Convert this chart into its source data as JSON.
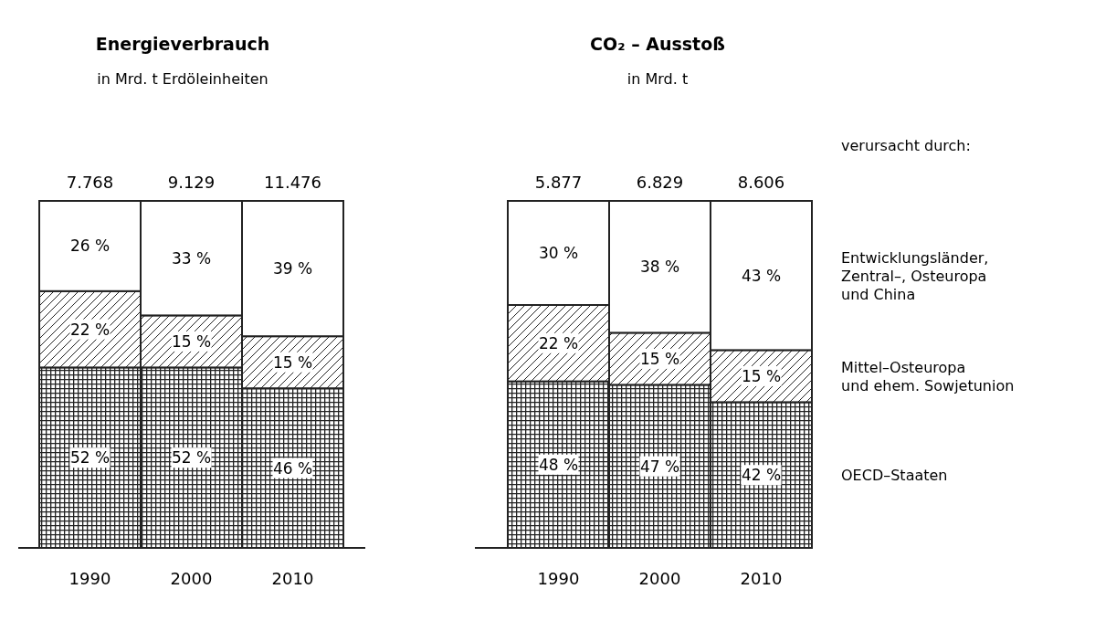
{
  "chart_data": [
    {
      "type": "bar",
      "title": "Energieverbrauch",
      "subtitle": "in Mrd. t Erdöleinheiten",
      "categories": [
        "1990",
        "2000",
        "2010"
      ],
      "stacked": true,
      "tick_labels": "x",
      "legend": false,
      "data_labels": true,
      "series": [
        {
          "color": "#222222",
          "values": [
            52,
            52,
            46
          ],
          "value_labels": [
            "52 %",
            "52 %",
            "46 %"
          ]
        },
        {
          "color": "#222222",
          "values": [
            22,
            15,
            15
          ],
          "value_labels": [
            "22 %",
            "15 %",
            "15 %"
          ]
        },
        {
          "color": "#ffffff",
          "values": [
            26,
            33,
            39
          ],
          "value_labels": [
            "26 %",
            "33 %",
            "39 %"
          ]
        }
      ],
      "annotations": [
        {
          "text": "7.768",
          "x": "1990",
          "y": 100
        },
        {
          "text": "9.129",
          "x": "2000",
          "y": 100
        },
        {
          "text": "11.476",
          "x": "2010",
          "y": 100
        }
      ]
    },
    {
      "type": "bar",
      "title": "CO₂ – Ausstoß",
      "subtitle": "in Mrd. t",
      "categories": [
        "1990",
        "2000",
        "2010"
      ],
      "stacked": true,
      "tick_labels": "x",
      "legend": "right",
      "legend_title": "verursacht durch:",
      "data_labels": true,
      "series": [
        {
          "name": "OECD–Staaten",
          "color": "#222222",
          "values": [
            48,
            47,
            42
          ],
          "value_labels": [
            "48 %",
            "47 %",
            "42 %"
          ]
        },
        {
          "name": "Mittel–Osteuropa\nund ehem. Sowjetunion",
          "color": "#222222",
          "values": [
            22,
            15,
            15
          ],
          "value_labels": [
            "22 %",
            "15 %",
            "15 %"
          ]
        },
        {
          "name": "Entwicklungsländer,\nZentral–, Osteuropa\nund China",
          "color": "#ffffff",
          "values": [
            30,
            38,
            43
          ],
          "value_labels": [
            "30 %",
            "38 %",
            "43 %"
          ]
        }
      ],
      "annotations": [
        {
          "text": "5.877",
          "x": "1990",
          "y": 100
        },
        {
          "text": "6.829",
          "x": "2000",
          "y": 100
        },
        {
          "text": "8.606",
          "x": "2010",
          "y": 100
        }
      ]
    }
  ]
}
